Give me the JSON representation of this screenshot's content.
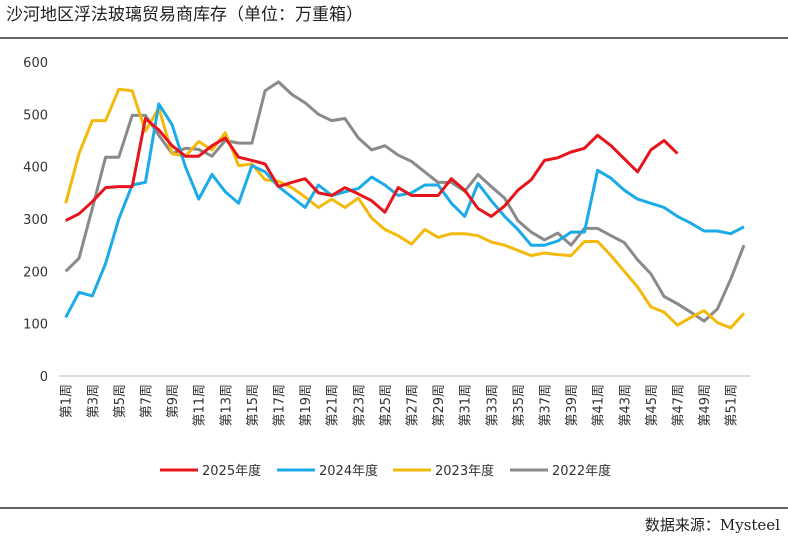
{
  "chart_data": {
    "type": "line",
    "title": "沙河地区浮法玻璃贸易商库存（单位：万重箱）",
    "source": "数据来源：Mysteel",
    "categories": [
      "第1周",
      null,
      "第3周",
      null,
      "第5周",
      null,
      "第7周",
      null,
      "第9周",
      null,
      "第11周",
      null,
      "第13周",
      null,
      "第15周",
      null,
      "第17周",
      null,
      "第19周",
      null,
      "第21周",
      null,
      "第23周",
      null,
      "第25周",
      null,
      "第27周",
      null,
      "第29周",
      null,
      "第31周",
      null,
      "第33周",
      null,
      "第35周",
      null,
      "第37周",
      null,
      "第39周",
      null,
      "第41周",
      null,
      "第43周",
      null,
      "第45周",
      null,
      "第47周",
      null,
      "第49周",
      null,
      "第51周",
      null
    ],
    "series": [
      {
        "name": "2025年度",
        "color": "#e8141b",
        "values": [
          297,
          310,
          333,
          360,
          362,
          362,
          492,
          470,
          440,
          420,
          420,
          440,
          455,
          418,
          412,
          405,
          362,
          370,
          377,
          350,
          345,
          360,
          348,
          335,
          313,
          360,
          345,
          345,
          345,
          377,
          355,
          320,
          305,
          325,
          355,
          375,
          412,
          417,
          428,
          435,
          460,
          440,
          415,
          390,
          432,
          450,
          425,
          null,
          null,
          null,
          null,
          null
        ]
      },
      {
        "name": "2024年度",
        "color": "#1aabe8",
        "values": [
          112,
          160,
          153,
          215,
          300,
          365,
          370,
          520,
          480,
          400,
          338,
          385,
          352,
          330,
          402,
          390,
          362,
          342,
          322,
          365,
          345,
          352,
          358,
          380,
          365,
          345,
          350,
          365,
          365,
          330,
          305,
          368,
          335,
          305,
          280,
          250,
          250,
          258,
          275,
          275,
          393,
          378,
          355,
          338,
          330,
          322,
          305,
          292,
          277,
          277,
          272,
          285
        ]
      },
      {
        "name": "2023年度",
        "color": "#f5b90c",
        "values": [
          330,
          425,
          488,
          488,
          548,
          545,
          468,
          512,
          425,
          420,
          448,
          432,
          465,
          402,
          405,
          375,
          372,
          360,
          342,
          322,
          338,
          322,
          340,
          302,
          280,
          268,
          252,
          280,
          265,
          272,
          272,
          268,
          256,
          250,
          240,
          230,
          235,
          232,
          230,
          257,
          257,
          230,
          200,
          170,
          132,
          122,
          97,
          112,
          125,
          102,
          92,
          120
        ]
      },
      {
        "name": "2022年度",
        "color": "#8a8a8a",
        "values": [
          200,
          225,
          320,
          418,
          418,
          498,
          498,
          460,
          425,
          435,
          433,
          420,
          450,
          445,
          445,
          545,
          562,
          538,
          522,
          500,
          488,
          492,
          455,
          432,
          440,
          422,
          410,
          390,
          370,
          370,
          353,
          385,
          362,
          340,
          297,
          275,
          260,
          273,
          250,
          282,
          282,
          268,
          255,
          222,
          195,
          152,
          138,
          122,
          105,
          128,
          185,
          250
        ]
      }
    ],
    "ylim": [
      0,
      600
    ],
    "yticks": [
      0,
      100,
      200,
      300,
      400,
      500,
      600
    ],
    "grid": false,
    "legend": "bottom"
  }
}
